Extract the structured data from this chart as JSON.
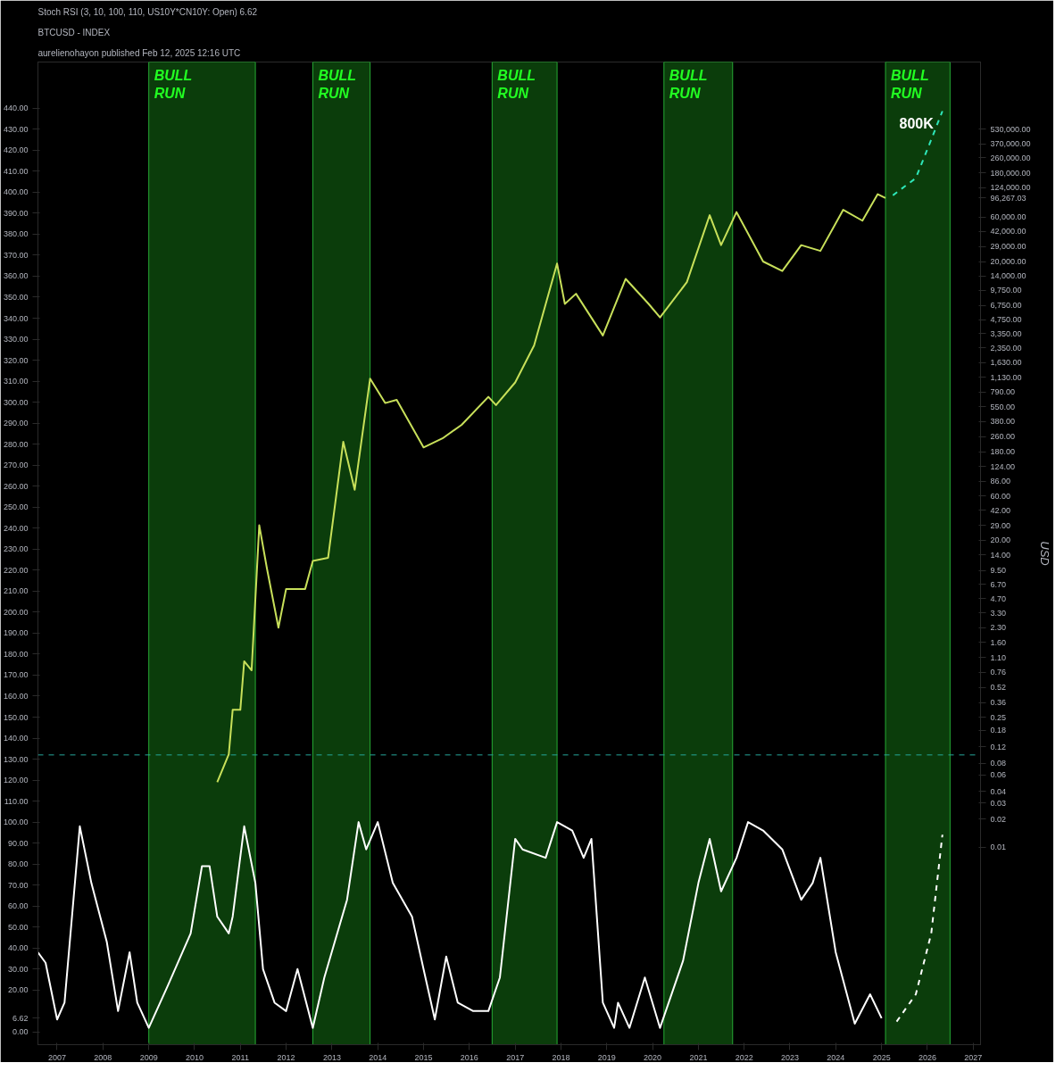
{
  "chart_data": {
    "type": "line",
    "title": "Stoch RSI (3, 10, 100, 110, US10Y*CN10Y: Open)  6.62",
    "subtitle": "BTCUSD - INDEX",
    "y2label": "USD",
    "annotations": [
      "aurelienohayon published Feb 12, 2025 12:16 UTC"
    ],
    "series": [
      {
        "color": "#ffffff",
        "x": [
          "2006-08",
          "2006-10",
          "2007-01",
          "2007-03",
          "2007-07",
          "2007-10",
          "2008-02",
          "2008-05",
          "2008-08",
          "2008-10",
          "2009-01",
          "2009-06",
          "2009-12",
          "2010-03",
          "2010-05",
          "2010-07",
          "2010-10",
          "2010-11",
          "2011-02",
          "2011-05",
          "2011-07",
          "2011-10",
          "2012-01",
          "2012-04",
          "2012-08",
          "2012-11",
          "2013-05",
          "2013-08",
          "2013-10",
          "2014-01",
          "2014-05",
          "2014-10",
          "2015-01",
          "2015-04",
          "2015-07",
          "2015-10",
          "2016-02",
          "2016-06",
          "2016-09",
          "2017-01",
          "2017-03",
          "2017-09",
          "2017-12",
          "2018-04",
          "2018-07",
          "2018-09",
          "2018-12",
          "2019-03",
          "2019-04",
          "2019-07",
          "2019-11",
          "2020-03",
          "2020-09",
          "2021-01",
          "2021-04",
          "2021-07",
          "2021-11",
          "2022-02",
          "2022-06",
          "2022-11",
          "2023-04",
          "2023-07",
          "2023-09",
          "2024-01",
          "2024-06",
          "2024-10",
          "2025-01"
        ],
        "values": [
          38,
          33,
          6,
          14,
          98,
          71,
          43,
          10,
          38,
          14,
          2,
          22,
          47,
          79,
          79,
          55,
          47,
          55,
          98,
          71,
          30,
          14,
          10,
          30,
          2,
          26,
          63,
          100,
          87,
          100,
          71,
          55,
          30,
          6,
          36,
          14,
          10,
          10,
          26,
          92,
          87,
          83,
          100,
          96,
          83,
          92,
          14,
          2,
          14,
          2,
          26,
          2,
          34,
          71,
          92,
          67,
          83,
          100,
          96,
          87,
          63,
          71,
          83,
          38,
          4,
          18,
          6.62
        ]
      },
      {
        "color": "#ffffff",
        "line_style": "dashed",
        "x": [
          "2025-05",
          "2025-10",
          "2026-02",
          "2026-05"
        ],
        "values": [
          5,
          18,
          47,
          94
        ]
      },
      {
        "color": "#c8e05a",
        "axis": "y2",
        "x": [
          "2010-07",
          "2010-10",
          "2010-11",
          "2011-01",
          "2011-02",
          "2011-04",
          "2011-06",
          "2011-08",
          "2011-11",
          "2012-01",
          "2012-06",
          "2012-08",
          "2012-12",
          "2013-04",
          "2013-07",
          "2013-11",
          "2014-03",
          "2014-06",
          "2015-01",
          "2015-06",
          "2015-11",
          "2016-06",
          "2016-08",
          "2017-01",
          "2017-06",
          "2017-12",
          "2018-02",
          "2018-05",
          "2018-12",
          "2019-06",
          "2019-12",
          "2020-03",
          "2020-10",
          "2021-04",
          "2021-07",
          "2021-11",
          "2022-06",
          "2022-11",
          "2023-04",
          "2023-09",
          "2024-03",
          "2024-08",
          "2024-12",
          "2025-02"
        ],
        "values": [
          0.05,
          0.1,
          0.3,
          0.3,
          1,
          0.8,
          29,
          10,
          2.3,
          6,
          6,
          12,
          13,
          230,
          70,
          1100,
          600,
          650,
          200,
          250,
          350,
          700,
          570,
          1000,
          2500,
          19000,
          7000,
          9000,
          3200,
          13000,
          7000,
          5000,
          12000,
          63000,
          30000,
          68000,
          20000,
          15800,
          30000,
          26000,
          72000,
          55000,
          106000,
          96267.03
        ]
      },
      {
        "name": "800K",
        "color": "#2ee6b8",
        "axis": "y2",
        "line_style": "dashed",
        "x": [
          "2025-04",
          "2025-10",
          "2026-02",
          "2026-05"
        ],
        "values": [
          103000,
          158000,
          410000,
          830000
        ]
      }
    ],
    "xlim": [
      "2006-08",
      "2027-03"
    ],
    "xticks": [
      {
        "value": "2007",
        "label": "2007"
      },
      {
        "value": "2008",
        "label": "2008"
      },
      {
        "value": "2009",
        "label": "2009"
      },
      {
        "value": "2010",
        "label": "2010"
      },
      {
        "value": "2011",
        "label": "2011"
      },
      {
        "value": "2012",
        "label": "2012"
      },
      {
        "value": "2013",
        "label": "2013"
      },
      {
        "value": "2014",
        "label": "2014"
      },
      {
        "value": "2015",
        "label": "2015"
      },
      {
        "value": "2016",
        "label": "2016"
      },
      {
        "value": "2017",
        "label": "2017"
      },
      {
        "value": "2018",
        "label": "2018"
      },
      {
        "value": "2019",
        "label": "2019"
      },
      {
        "value": "2020",
        "label": "2020"
      },
      {
        "value": "2021",
        "label": "2021"
      },
      {
        "value": "2022",
        "label": "2022"
      },
      {
        "value": "2023",
        "label": "2023"
      },
      {
        "value": "2024",
        "label": "2024"
      },
      {
        "value": "2025",
        "label": "2025"
      },
      {
        "value": "2026",
        "label": "2026"
      },
      {
        "value": "2027",
        "label": "2027"
      }
    ],
    "ylim": [
      -6,
      462
    ],
    "yticks": [
      {
        "value": 0,
        "label": "0.00"
      },
      {
        "value": 6.62,
        "label": "6.62"
      },
      {
        "value": 20,
        "label": "20.00"
      },
      {
        "value": 30,
        "label": "30.00"
      },
      {
        "value": 40,
        "label": "40.00"
      },
      {
        "value": 50,
        "label": "50.00"
      },
      {
        "value": 60,
        "label": "60.00"
      },
      {
        "value": 70,
        "label": "70.00"
      },
      {
        "value": 80,
        "label": "80.00"
      },
      {
        "value": 90,
        "label": "90.00"
      },
      {
        "value": 100,
        "label": "100.00"
      },
      {
        "value": 110,
        "label": "110.00"
      },
      {
        "value": 120,
        "label": "120.00"
      },
      {
        "value": 130,
        "label": "130.00"
      },
      {
        "value": 140,
        "label": "140.00"
      },
      {
        "value": 150,
        "label": "150.00"
      },
      {
        "value": 160,
        "label": "160.00"
      },
      {
        "value": 170,
        "label": "170.00"
      },
      {
        "value": 180,
        "label": "180.00"
      },
      {
        "value": 190,
        "label": "190.00"
      },
      {
        "value": 200,
        "label": "200.00"
      },
      {
        "value": 210,
        "label": "210.00"
      },
      {
        "value": 220,
        "label": "220.00"
      },
      {
        "value": 230,
        "label": "230.00"
      },
      {
        "value": 240,
        "label": "240.00"
      },
      {
        "value": 250,
        "label": "250.00"
      },
      {
        "value": 260,
        "label": "260.00"
      },
      {
        "value": 270,
        "label": "270.00"
      },
      {
        "value": 280,
        "label": "280.00"
      },
      {
        "value": 290,
        "label": "290.00"
      },
      {
        "value": 300,
        "label": "300.00"
      },
      {
        "value": 310,
        "label": "310.00"
      },
      {
        "value": 320,
        "label": "320.00"
      },
      {
        "value": 330,
        "label": "330.00"
      },
      {
        "value": 340,
        "label": "340.00"
      },
      {
        "value": 350,
        "label": "350.00"
      },
      {
        "value": 360,
        "label": "360.00"
      },
      {
        "value": 370,
        "label": "370.00"
      },
      {
        "value": 380,
        "label": "380.00"
      },
      {
        "value": 390,
        "label": "390.00"
      },
      {
        "value": 400,
        "label": "400.00"
      },
      {
        "value": 410,
        "label": "410.00"
      },
      {
        "value": 420,
        "label": "420.00"
      },
      {
        "value": 430,
        "label": "430.00"
      },
      {
        "value": 440,
        "label": "440.00"
      }
    ],
    "y2lim": [
      7.5e-05,
      2800000
    ],
    "y2ticks": [
      {
        "value": 530000,
        "label": "530,000.00"
      },
      {
        "value": 370000,
        "label": "370,000.00"
      },
      {
        "value": 260000,
        "label": "260,000.00"
      },
      {
        "value": 180000,
        "label": "180,000.00"
      },
      {
        "value": 124000,
        "label": "124,000.00"
      },
      {
        "value": 96267.03,
        "label": "96,267.03"
      },
      {
        "value": 60000,
        "label": "60,000.00"
      },
      {
        "value": 42000,
        "label": "42,000.00"
      },
      {
        "value": 29000,
        "label": "29,000.00"
      },
      {
        "value": 20000,
        "label": "20,000.00"
      },
      {
        "value": 14000,
        "label": "14,000.00"
      },
      {
        "value": 9750,
        "label": "9,750.00"
      },
      {
        "value": 6750,
        "label": "6,750.00"
      },
      {
        "value": 4750,
        "label": "4,750.00"
      },
      {
        "value": 3350,
        "label": "3,350.00"
      },
      {
        "value": 2350,
        "label": "2,350.00"
      },
      {
        "value": 1630,
        "label": "1,630.00"
      },
      {
        "value": 1130,
        "label": "1,130.00"
      },
      {
        "value": 790,
        "label": "790.00"
      },
      {
        "value": 550,
        "label": "550.00"
      },
      {
        "value": 380,
        "label": "380.00"
      },
      {
        "value": 260,
        "label": "260.00"
      },
      {
        "value": 180,
        "label": "180.00"
      },
      {
        "value": 124,
        "label": "124.00"
      },
      {
        "value": 86,
        "label": "86.00"
      },
      {
        "value": 60,
        "label": "60.00"
      },
      {
        "value": 42,
        "label": "42.00"
      },
      {
        "value": 29,
        "label": "29.00"
      },
      {
        "value": 20,
        "label": "20.00"
      },
      {
        "value": 14,
        "label": "14.00"
      },
      {
        "value": 9.5,
        "label": "9.50"
      },
      {
        "value": 6.7,
        "label": "6.70"
      },
      {
        "value": 4.7,
        "label": "4.70"
      },
      {
        "value": 3.3,
        "label": "3.30"
      },
      {
        "value": 2.3,
        "label": "2.30"
      },
      {
        "value": 1.6,
        "label": "1.60"
      },
      {
        "value": 1.1,
        "label": "1.10"
      },
      {
        "value": 0.76,
        "label": "0.76"
      },
      {
        "value": 0.52,
        "label": "0.52"
      },
      {
        "value": 0.36,
        "label": "0.36"
      },
      {
        "value": 0.25,
        "label": "0.25"
      },
      {
        "value": 0.18,
        "label": "0.18"
      },
      {
        "value": 0.12,
        "label": "0.12"
      },
      {
        "value": 0.08,
        "label": "0.08"
      },
      {
        "value": 0.06,
        "label": "0.06"
      },
      {
        "value": 0.04,
        "label": "0.04"
      },
      {
        "value": 0.03,
        "label": "0.03"
      },
      {
        "value": 0.02,
        "label": "0.02"
      },
      {
        "value": 0.01,
        "label": "0.01"
      }
    ],
    "log": "y2",
    "ref_lines": [
      {
        "axis": "y",
        "value": 132,
        "color": "#26a69a",
        "line_style": "dashed"
      }
    ],
    "bands": [
      {
        "axis": "x",
        "from": "2009-01",
        "to": "2011-05",
        "color": "#0b3d0b",
        "label": "BULL\nRUN"
      },
      {
        "axis": "x",
        "from": "2012-08",
        "to": "2013-11",
        "color": "#0b3d0b",
        "label": "BULL\nRUN"
      },
      {
        "axis": "x",
        "from": "2016-07",
        "to": "2017-12",
        "color": "#0b3d0b",
        "label": "BULL\nRUN"
      },
      {
        "axis": "x",
        "from": "2020-04",
        "to": "2021-10",
        "color": "#0b3d0b",
        "label": "BULL\nRUN"
      },
      {
        "axis": "x",
        "from": "2025-02",
        "to": "2026-07",
        "color": "#0b3d0b",
        "label": "BULL\nRUN"
      }
    ]
  }
}
